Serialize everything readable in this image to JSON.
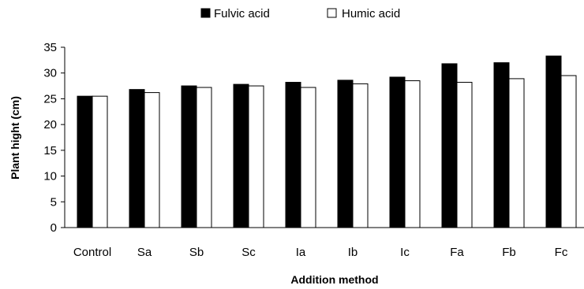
{
  "chart_data": {
    "type": "bar",
    "title": "",
    "xlabel": "Addition method",
    "ylabel": "Plant hight (cm)",
    "ylim": [
      0,
      35
    ],
    "yticks": [
      0,
      5,
      10,
      15,
      20,
      25,
      30,
      35
    ],
    "categories": [
      "Control",
      "Sa",
      "Sb",
      "Sc",
      "Ia",
      "Ib",
      "Ic",
      "Fa",
      "Fb",
      "Fc"
    ],
    "series": [
      {
        "name": "Fulvic acid",
        "color": "#000000",
        "values": [
          25.5,
          26.8,
          27.5,
          27.8,
          28.2,
          28.6,
          29.2,
          31.8,
          32.0,
          33.3
        ]
      },
      {
        "name": "Humic acid",
        "color": "#ffffff",
        "values": [
          25.5,
          26.2,
          27.2,
          27.5,
          27.2,
          27.9,
          28.5,
          28.2,
          28.9,
          29.5
        ]
      }
    ],
    "legend_position": "top-center",
    "grid": false
  }
}
